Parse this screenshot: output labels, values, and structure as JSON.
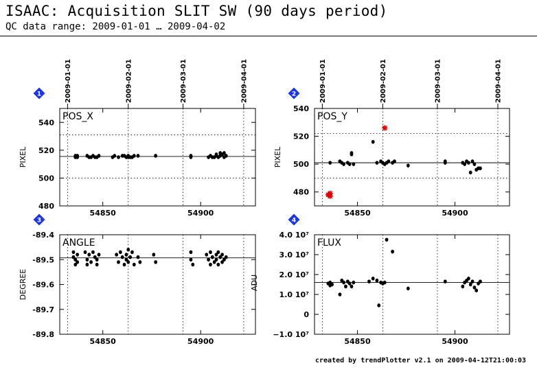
{
  "header": {
    "title": "ISAAC: Acquisition SLIT SW (90 days period)",
    "subtitle": "QC data range: 2009-01-01 … 2009-04-02"
  },
  "footer": {
    "text": "created by trendPlotter v2.1 on 2009-04-12T21:00:03"
  },
  "colors": {
    "points": "#000000",
    "outliers": "#e00000",
    "badge": "#1d35e6",
    "grid": "#000000"
  },
  "chart_data": [
    {
      "type": "scatter",
      "panel_number": "1",
      "label": "POS_X",
      "ylabel": "PIXEL",
      "xlim": [
        54828,
        54928
      ],
      "ylim": [
        480,
        550
      ],
      "y_ticks": [
        480,
        500,
        520,
        540
      ],
      "y_tick_labels": [
        "480",
        "500",
        "520",
        "540"
      ],
      "x_ticks": [
        54850,
        54900
      ],
      "x_tick_labels": [
        "54850",
        "54900"
      ],
      "date_ticks": [
        54832,
        54863,
        54891,
        54922
      ],
      "date_labels": [
        "2009-01-01",
        "2009-02-01",
        "2009-03-01",
        "2009-04-01"
      ],
      "reference_line": 515.5,
      "threshold_lines": [
        500,
        531
      ],
      "points": [
        [
          54836,
          515
        ],
        [
          54836,
          516
        ],
        [
          54837,
          516
        ],
        [
          54837,
          515
        ],
        [
          54842,
          516
        ],
        [
          54843,
          515
        ],
        [
          54844,
          515
        ],
        [
          54845,
          516
        ],
        [
          54846,
          515
        ],
        [
          54847,
          515
        ],
        [
          54848,
          516
        ],
        [
          54855,
          515
        ],
        [
          54856,
          516
        ],
        [
          54858,
          515
        ],
        [
          54860,
          516
        ],
        [
          54861,
          516
        ],
        [
          54862,
          515
        ],
        [
          54863,
          515
        ],
        [
          54863,
          516
        ],
        [
          54864,
          515
        ],
        [
          54865,
          515
        ],
        [
          54866,
          516
        ],
        [
          54868,
          516
        ],
        [
          54877,
          516
        ],
        [
          54895,
          515
        ],
        [
          54895,
          516
        ],
        [
          54904,
          515
        ],
        [
          54905,
          516
        ],
        [
          54906,
          515
        ],
        [
          54907,
          515
        ],
        [
          54908,
          516
        ],
        [
          54908,
          517
        ],
        [
          54909,
          515
        ],
        [
          54910,
          518
        ],
        [
          54910,
          516
        ],
        [
          54911,
          517
        ],
        [
          54912,
          518
        ],
        [
          54912,
          515
        ],
        [
          54913,
          516
        ]
      ],
      "outliers": []
    },
    {
      "type": "scatter",
      "panel_number": "2",
      "label": "POS_Y",
      "ylabel": "PIXEL",
      "xlim": [
        54828,
        54928
      ],
      "ylim": [
        470,
        540
      ],
      "y_ticks": [
        480,
        500,
        520,
        540
      ],
      "y_tick_labels": [
        "480",
        "500",
        "520",
        "540"
      ],
      "x_ticks": [
        54850,
        54900
      ],
      "x_tick_labels": [
        "54850",
        "54900"
      ],
      "date_ticks": [
        54832,
        54863,
        54891,
        54922
      ],
      "date_labels": [
        "2009-01-01",
        "2009-02-01",
        "2009-03-01",
        "2009-04-01"
      ],
      "reference_line": 501,
      "threshold_lines": [
        490,
        522
      ],
      "points": [
        [
          54836,
          501
        ],
        [
          54841,
          502
        ],
        [
          54842,
          501
        ],
        [
          54843,
          500
        ],
        [
          54845,
          501
        ],
        [
          54846,
          500
        ],
        [
          54847,
          507
        ],
        [
          54847,
          508
        ],
        [
          54848,
          500
        ],
        [
          54858,
          516
        ],
        [
          54860,
          501
        ],
        [
          54862,
          502
        ],
        [
          54863,
          501
        ],
        [
          54864,
          500
        ],
        [
          54865,
          501
        ],
        [
          54866,
          502
        ],
        [
          54868,
          501
        ],
        [
          54869,
          502
        ],
        [
          54876,
          499
        ],
        [
          54895,
          502
        ],
        [
          54895,
          501
        ],
        [
          54904,
          501
        ],
        [
          54905,
          500
        ],
        [
          54906,
          502
        ],
        [
          54907,
          501
        ],
        [
          54908,
          494
        ],
        [
          54909,
          502
        ],
        [
          54910,
          500
        ],
        [
          54911,
          496
        ],
        [
          54912,
          497
        ],
        [
          54913,
          497
        ]
      ],
      "outliers": [
        [
          54835,
          478
        ],
        [
          54836,
          479
        ],
        [
          54836,
          477
        ],
        [
          54864,
          526
        ]
      ]
    },
    {
      "type": "scatter",
      "panel_number": "3",
      "label": "ANGLE",
      "ylabel": "DEGREE",
      "xlim": [
        54828,
        54928
      ],
      "ylim": [
        -89.8,
        -89.4
      ],
      "y_ticks": [
        -89.8,
        -89.7,
        -89.6,
        -89.5,
        -89.4
      ],
      "y_tick_labels": [
        "-89.8",
        "-89.7",
        "-89.6",
        "-89.5",
        "-89.4"
      ],
      "x_ticks": [
        54850,
        54900
      ],
      "x_tick_labels": [
        "54850",
        "54900"
      ],
      "date_ticks": [
        54832,
        54863,
        54891,
        54922
      ],
      "date_labels": [
        "2009-01-01",
        "2009-02-01",
        "2009-03-01",
        "2009-04-01"
      ],
      "reference_line": -89.493,
      "threshold_lines": [],
      "points": [
        [
          54835,
          -89.47
        ],
        [
          54835,
          -89.49
        ],
        [
          54836,
          -89.5
        ],
        [
          54836,
          -89.52
        ],
        [
          54837,
          -89.48
        ],
        [
          54837,
          -89.51
        ],
        [
          54841,
          -89.47
        ],
        [
          54842,
          -89.5
        ],
        [
          54842,
          -89.52
        ],
        [
          54843,
          -89.48
        ],
        [
          54844,
          -89.51
        ],
        [
          54845,
          -89.47
        ],
        [
          54846,
          -89.49
        ],
        [
          54847,
          -89.5
        ],
        [
          54847,
          -89.52
        ],
        [
          54848,
          -89.48
        ],
        [
          54857,
          -89.48
        ],
        [
          54858,
          -89.51
        ],
        [
          54859,
          -89.47
        ],
        [
          54860,
          -89.49
        ],
        [
          54861,
          -89.52
        ],
        [
          54862,
          -89.48
        ],
        [
          54862,
          -89.5
        ],
        [
          54863,
          -89.46
        ],
        [
          54863,
          -89.51
        ],
        [
          54864,
          -89.49
        ],
        [
          54865,
          -89.47
        ],
        [
          54866,
          -89.52
        ],
        [
          54868,
          -89.49
        ],
        [
          54869,
          -89.51
        ],
        [
          54876,
          -89.48
        ],
        [
          54877,
          -89.51
        ],
        [
          54895,
          -89.47
        ],
        [
          54895,
          -89.5
        ],
        [
          54896,
          -89.52
        ],
        [
          54903,
          -89.48
        ],
        [
          54904,
          -89.5
        ],
        [
          54905,
          -89.47
        ],
        [
          54905,
          -89.52
        ],
        [
          54906,
          -89.49
        ],
        [
          54907,
          -89.51
        ],
        [
          54908,
          -89.48
        ],
        [
          54908,
          -89.5
        ],
        [
          54909,
          -89.47
        ],
        [
          54909,
          -89.52
        ],
        [
          54910,
          -89.49
        ],
        [
          54911,
          -89.51
        ],
        [
          54911,
          -89.48
        ],
        [
          54912,
          -89.5
        ],
        [
          54913,
          -89.49
        ]
      ],
      "outliers": []
    },
    {
      "type": "scatter",
      "panel_number": "4",
      "label": "FLUX",
      "ylabel": "ADU",
      "xlim": [
        54828,
        54928
      ],
      "ylim": [
        -10000000.0,
        40000000.0
      ],
      "y_ticks": [
        -10000000.0,
        0,
        10000000.0,
        20000000.0,
        30000000.0,
        40000000.0
      ],
      "y_tick_labels": [
        "−1.0 10⁷",
        "0",
        "1.0 10⁷",
        "2.0 10⁷",
        "3.0 10⁷",
        "4.0 10⁷"
      ],
      "x_ticks": [
        54850,
        54900
      ],
      "x_tick_labels": [
        "54850",
        "54900"
      ],
      "date_ticks": [
        54832,
        54863,
        54891,
        54922
      ],
      "date_labels": [
        "2009-01-01",
        "2009-02-01",
        "2009-03-01",
        "2009-04-01"
      ],
      "reference_line": 16000000.0,
      "threshold_lines": [],
      "points": [
        [
          54835,
          15500000.0
        ],
        [
          54836,
          16000000.0
        ],
        [
          54836,
          14500000.0
        ],
        [
          54837,
          15000000.0
        ],
        [
          54841,
          10000000.0
        ],
        [
          54842,
          17000000.0
        ],
        [
          54843,
          16000000.0
        ],
        [
          54844,
          14000000.0
        ],
        [
          54845,
          16500000.0
        ],
        [
          54846,
          15500000.0
        ],
        [
          54847,
          14000000.0
        ],
        [
          54848,
          16000000.0
        ],
        [
          54856,
          16500000.0
        ],
        [
          54858,
          18000000.0
        ],
        [
          54860,
          17000000.0
        ],
        [
          54861,
          4500000.0
        ],
        [
          54862,
          16000000.0
        ],
        [
          54863,
          15500000.0
        ],
        [
          54864,
          16000000.0
        ],
        [
          54865,
          37500000.0
        ],
        [
          54868,
          31500000.0
        ],
        [
          54876,
          13000000.0
        ],
        [
          54895,
          16500000.0
        ],
        [
          54904,
          14000000.0
        ],
        [
          54905,
          16000000.0
        ],
        [
          54906,
          17000000.0
        ],
        [
          54907,
          18000000.0
        ],
        [
          54908,
          15000000.0
        ],
        [
          54909,
          16500000.0
        ],
        [
          54910,
          13500000.0
        ],
        [
          54911,
          12000000.0
        ],
        [
          54912,
          15500000.0
        ],
        [
          54913,
          16500000.0
        ]
      ],
      "outliers": []
    }
  ]
}
